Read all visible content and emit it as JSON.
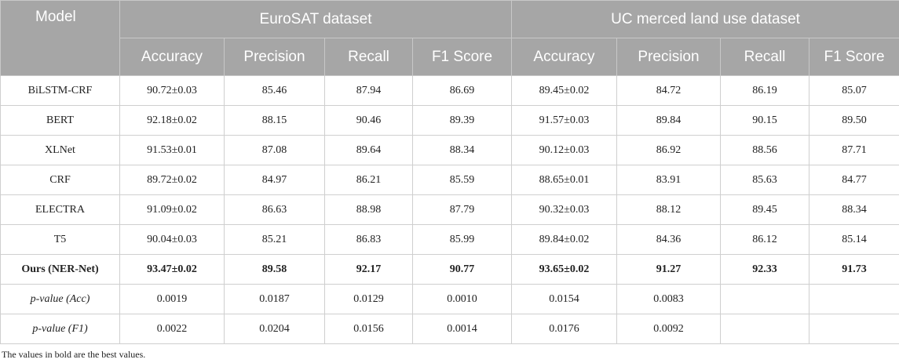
{
  "header": {
    "model": "Model",
    "groups": [
      "EuroSAT dataset",
      "UC merced land use dataset"
    ],
    "columns": [
      "Accuracy",
      "Precision",
      "Recall",
      "F1 Score",
      "Accuracy",
      "Precision",
      "Recall",
      "F1 Score"
    ]
  },
  "table": {
    "rows": [
      [
        "BiLSTM-CRF",
        "90.72±0.03",
        "85.46",
        "87.94",
        "86.69",
        "89.45±0.02",
        "84.72",
        "86.19",
        "85.07"
      ],
      [
        "BERT",
        "92.18±0.02",
        "88.15",
        "90.46",
        "89.39",
        "91.57±0.03",
        "89.84",
        "90.15",
        "89.50"
      ],
      [
        "XLNet",
        "91.53±0.01",
        "87.08",
        "89.64",
        "88.34",
        "90.12±0.03",
        "86.92",
        "88.56",
        "87.71"
      ],
      [
        "CRF",
        "89.72±0.02",
        "84.97",
        "86.21",
        "85.59",
        "88.65±0.01",
        "83.91",
        "85.63",
        "84.77"
      ],
      [
        "ELECTRA",
        "91.09±0.02",
        "86.63",
        "88.98",
        "87.79",
        "90.32±0.03",
        "88.12",
        "89.45",
        "88.34"
      ],
      [
        "T5",
        "90.04±0.03",
        "85.21",
        "86.83",
        "85.99",
        "89.84±0.02",
        "84.36",
        "86.12",
        "85.14"
      ],
      [
        "Ours (NER-Net)",
        "93.47±0.02",
        "89.58",
        "92.17",
        "90.77",
        "93.65±0.02",
        "91.27",
        "92.33",
        "91.73"
      ],
      [
        "p-value (Acc)",
        "0.0019",
        "0.0187",
        "0.0129",
        "0.0010",
        "0.0154",
        "0.0083"
      ],
      [
        "p-value (F1)",
        "0.0022",
        "0.0204",
        "0.0156",
        "0.0014",
        "0.0176",
        "0.0092"
      ]
    ]
  },
  "footnote": "The values in bold are the best values."
}
